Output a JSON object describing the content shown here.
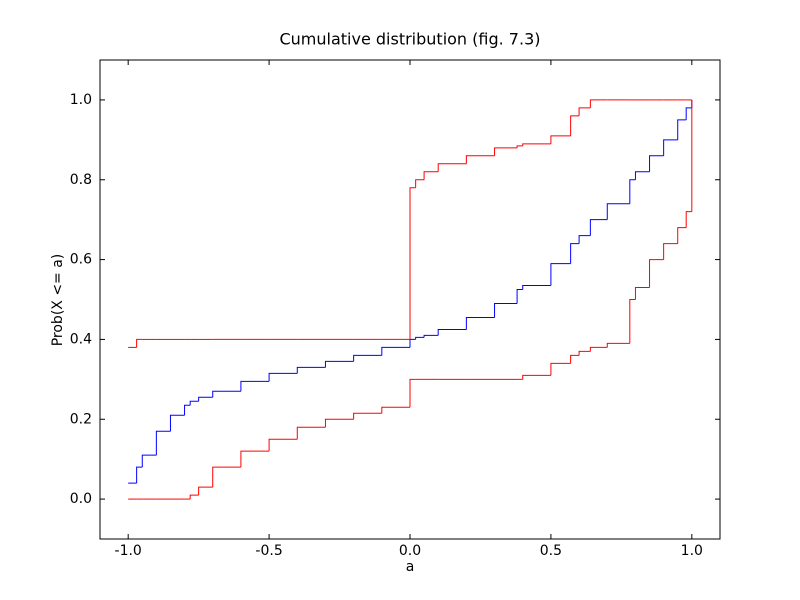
{
  "chart_data": {
    "type": "step",
    "title": "Cumulative distribution (fig. 7.3)",
    "x_label": "a",
    "y_label": "Prob(X <= a)",
    "x": [
      -1,
      -0.97,
      -0.95,
      -0.9,
      -0.85,
      -0.8,
      -0.78,
      -0.75,
      -0.7,
      -0.6,
      -0.5,
      -0.4,
      -0.3,
      -0.2,
      -0.1,
      0,
      0.02,
      0.05,
      0.1,
      0.2,
      0.3,
      0.38,
      0.4,
      0.5,
      0.57,
      0.6,
      0.64,
      0.7,
      0.78,
      0.8,
      0.85,
      0.9,
      0.95,
      0.98,
      1.0
    ],
    "series": [
      {
        "color": "#0000ff",
        "values": [
          0.04,
          0.08,
          0.11,
          0.17,
          0.21,
          0.235,
          0.245,
          0.255,
          0.27,
          0.295,
          0.315,
          0.33,
          0.345,
          0.36,
          0.38,
          0.4,
          0.405,
          0.41,
          0.425,
          0.455,
          0.49,
          0.525,
          0.535,
          0.59,
          0.64,
          0.66,
          0.7,
          0.74,
          0.8,
          0.82,
          0.86,
          0.9,
          0.95,
          0.98,
          1.0
        ]
      },
      {
        "color": "#ff0000",
        "values": [
          0.38,
          0.4,
          0.4,
          0.4,
          0.4,
          0.4,
          0.4,
          0.4,
          0.4,
          0.4,
          0.4,
          0.4,
          0.4,
          0.4,
          0.4,
          0.78,
          0.8,
          0.82,
          0.84,
          0.86,
          0.88,
          0.885,
          0.89,
          0.91,
          0.96,
          0.98,
          1.0,
          1.0,
          1.0,
          1.0,
          1.0,
          1.0,
          1.0,
          1.0,
          1.0
        ]
      },
      {
        "color": "#ff0000",
        "values": [
          0,
          0,
          0,
          0,
          0,
          0,
          0.01,
          0.03,
          0.08,
          0.12,
          0.15,
          0.18,
          0.2,
          0.215,
          0.23,
          0.3,
          0.3,
          0.3,
          0.3,
          0.3,
          0.3,
          0.3,
          0.31,
          0.34,
          0.36,
          0.37,
          0.38,
          0.39,
          0.5,
          0.53,
          0.6,
          0.64,
          0.68,
          0.72,
          1.0
        ]
      }
    ],
    "xlim": [
      -1.1,
      1.1
    ],
    "ylim": [
      -0.1,
      1.1
    ],
    "xticks": [
      {
        "value": -1,
        "label": "-1.0"
      },
      {
        "value": -0.5,
        "label": "-0.5"
      },
      {
        "value": 0,
        "label": "0.0"
      },
      {
        "value": 0.5,
        "label": "0.5"
      },
      {
        "value": 1,
        "label": "1.0"
      }
    ],
    "yticks": [
      {
        "value": 0,
        "label": "0.0"
      },
      {
        "value": 0.2,
        "label": "0.2"
      },
      {
        "value": 0.4,
        "label": "0.4"
      },
      {
        "value": 0.6,
        "label": "0.6"
      },
      {
        "value": 0.8,
        "label": "0.8"
      },
      {
        "value": 1,
        "label": "1.0"
      }
    ]
  }
}
